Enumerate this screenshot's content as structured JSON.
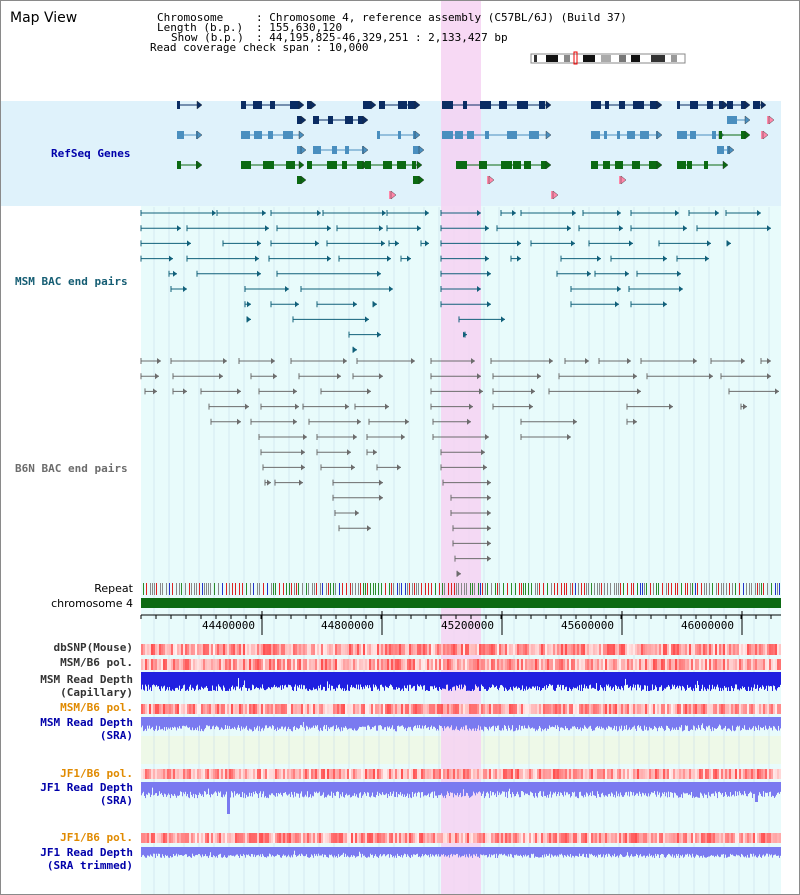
{
  "title": "Map View",
  "info": {
    "chromosome_key": "Chromosome",
    "chromosome_val": ": Chromosome 4, reference assembly (C57BL/6J) (Build 37)",
    "length_key": "Length (b.p.)",
    "length_val": ": 155,630,120",
    "show_key": "Show (b.p.)",
    "show_val": ": 44,195,825-46,329,251 : 2,133,427 bp",
    "coverage": "Read coverage check span : 10,000"
  },
  "tracks": {
    "refseq": "RefSeq Genes",
    "msm_bac": "MSM BAC end pairs",
    "b6n_bac": "B6N BAC end pairs",
    "repeat": "Repeat",
    "chromosome": "chromosome 4",
    "dbsnp": "dbSNP(Mouse)",
    "msm_b6_pol_1": "MSM/B6 pol.",
    "msm_depth_cap": "MSM Read Depth",
    "msm_depth_cap_sub": "(Capillary)",
    "msm_b6_pol_2": "MSM/B6 pol.",
    "msm_depth_sra": "MSM Read Depth",
    "msm_depth_sra_sub": "(SRA)",
    "jf1_pol_1": "JF1/B6 pol.",
    "jf1_depth_sra": "JF1 Read Depth",
    "jf1_depth_sra_sub": "(SRA)",
    "jf1_pol_2": "JF1/B6 pol.",
    "jf1_depth_trim": "JF1 Read Depth",
    "jf1_depth_trim_sub": "(SRA trimmed)"
  },
  "axis": {
    "ticks": [
      "44400000",
      "44800000",
      "45200000",
      "45600000",
      "46000000"
    ]
  },
  "colors": {
    "refseq_bg": "#dff2fb",
    "lower_bg": "#e8fbfb",
    "highlight": "#f6d2f2",
    "gene_dark": "#0a2c63",
    "gene_mid": "#4a8fbf",
    "gene_green": "#0b6a12",
    "msm_bac": "#11607a",
    "b6n_bac": "#6c6c6c",
    "chromosome": "#0b6a12",
    "depth_blue": "#2020e0",
    "depth_light": "#7a7af0",
    "label_blue": "#0000aa",
    "label_orange": "#e08a00",
    "label_teal": "#155d73"
  }
}
